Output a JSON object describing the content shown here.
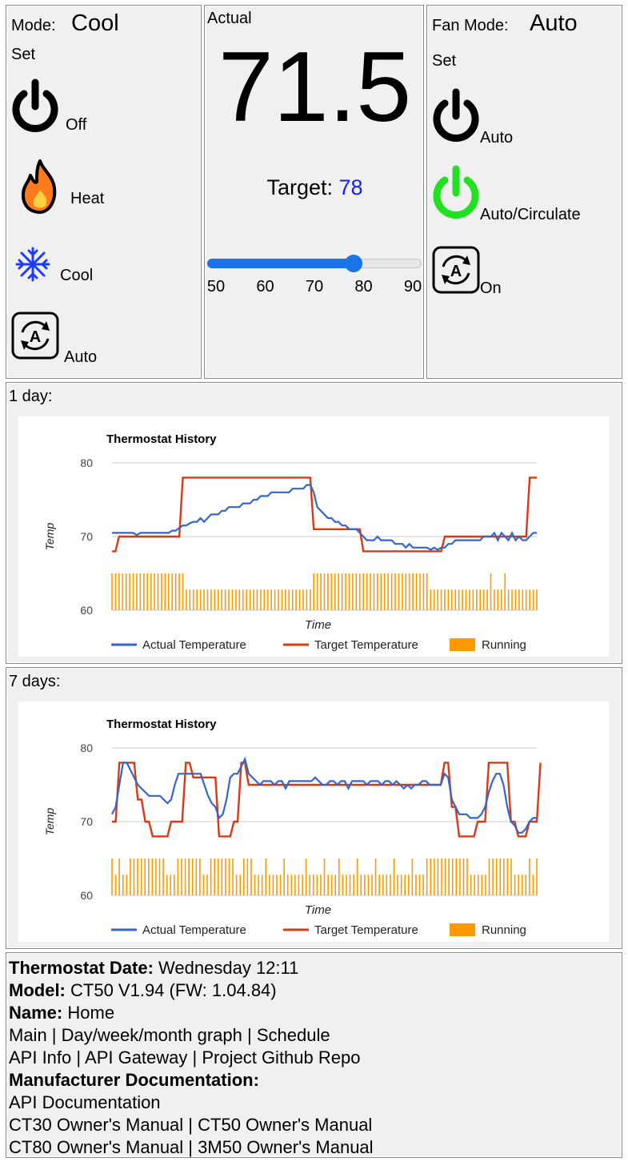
{
  "mode_panel": {
    "mode_label": "Mode:",
    "mode_value": "Cool",
    "set_label": "Set",
    "items": [
      {
        "label": "Off",
        "icon": "power-icon"
      },
      {
        "label": "Heat",
        "icon": "flame-icon"
      },
      {
        "label": "Cool",
        "icon": "snowflake-icon"
      },
      {
        "label": "Auto",
        "icon": "auto-cycle-icon"
      }
    ]
  },
  "temp_panel": {
    "actual_label": "Actual",
    "actual_value": "71.5",
    "target_label": "Target:",
    "target_value": "78",
    "slider": {
      "min": 50,
      "max": 90,
      "value": 78,
      "ticks": [
        "50",
        "60",
        "70",
        "80",
        "90"
      ]
    }
  },
  "fan_panel": {
    "mode_label": "Fan Mode:",
    "mode_value": "Auto",
    "set_label": "Set",
    "items": [
      {
        "label": "Auto",
        "icon": "power-icon"
      },
      {
        "label": "Auto/Circulate",
        "icon": "power-icon-green"
      },
      {
        "label": "On",
        "icon": "auto-cycle-icon"
      }
    ]
  },
  "charts_section": [
    {
      "label": "1 day:"
    },
    {
      "label": "7 days:"
    }
  ],
  "chart_data": [
    {
      "type": "line",
      "title": "Thermostat History",
      "xlabel": "Time",
      "ylabel": "Temp",
      "ylim": [
        60,
        80
      ],
      "yticks": [
        "80",
        "70",
        "60"
      ],
      "legend": [
        "Actual Temperature",
        "Target Temperature",
        "Running"
      ],
      "legend_position": "bottom",
      "series": [
        {
          "name": "Actual Temperature",
          "color": "#3366cc",
          "values": [
            70.5,
            70.5,
            70.5,
            70.5,
            70.5,
            70.5,
            70.5,
            70.2,
            70.5,
            70.5,
            70.5,
            70.5,
            70.5,
            70.5,
            70.5,
            70.5,
            70.5,
            70.8,
            70.8,
            71.2,
            71.5,
            71.5,
            71.8,
            72.0,
            72.0,
            72.5,
            72.0,
            72.5,
            73.0,
            73.0,
            73.0,
            73.5,
            73.5,
            74.0,
            74.0,
            74.0,
            74.0,
            74.5,
            74.5,
            74.5,
            75.0,
            75.0,
            75.5,
            75.5,
            75.5,
            76.0,
            76.0,
            76.0,
            76.0,
            76.0,
            76.0,
            76.5,
            76.5,
            76.5,
            76.5,
            77.0,
            77.0,
            76.0,
            74.0,
            73.5,
            73.0,
            72.5,
            72.5,
            72.0,
            72.0,
            71.5,
            71.5,
            71.0,
            71.0,
            71.0,
            70.5,
            70.0,
            69.5,
            69.5,
            69.5,
            70.0,
            69.5,
            69.5,
            69.5,
            69.5,
            69.0,
            69.0,
            69.0,
            68.5,
            69.0,
            68.5,
            68.5,
            68.5,
            68.5,
            68.5,
            68.2,
            68.5,
            68.2,
            68.5,
            68.5,
            69.0,
            69.0,
            69.5,
            69.5,
            69.5,
            69.5,
            69.5,
            69.5,
            69.5,
            69.5,
            70.0,
            70.0,
            70.0,
            70.5,
            69.5,
            70.5,
            70.0,
            69.5,
            70.5,
            69.5,
            70.0,
            69.5,
            69.5,
            70.0,
            70.5,
            70.5
          ]
        },
        {
          "name": "Target Temperature",
          "color": "#dc3912",
          "values": [
            68,
            68,
            70,
            70,
            70,
            70,
            70,
            70,
            70,
            70,
            70,
            70,
            70,
            70,
            70,
            70,
            70,
            70,
            70,
            70,
            78,
            78,
            78,
            78,
            78,
            78,
            78,
            78,
            78,
            78,
            78,
            78,
            78,
            78,
            78,
            78,
            78,
            78,
            78,
            78,
            78,
            78,
            78,
            78,
            78,
            78,
            78,
            78,
            78,
            78,
            78,
            78,
            78,
            78,
            78,
            78,
            78,
            71,
            71,
            71,
            71,
            71,
            71,
            71,
            71,
            71,
            71,
            71,
            71,
            71,
            71,
            68,
            68,
            68,
            68,
            68,
            68,
            68,
            68,
            68,
            68,
            68,
            68,
            68,
            68,
            68,
            68,
            68,
            68,
            68,
            68,
            68,
            68,
            68,
            70,
            70,
            70,
            70,
            70,
            70,
            70,
            70,
            70,
            70,
            70,
            70,
            70,
            70,
            70,
            70,
            70,
            70,
            70,
            70,
            70,
            70,
            70,
            70,
            78,
            78,
            78
          ]
        },
        {
          "name": "Running",
          "color": "#ff9900",
          "values": [
            1,
            1,
            1,
            1,
            1,
            1,
            1,
            1,
            1,
            1,
            1,
            1,
            1,
            1,
            1,
            1,
            1,
            1,
            1,
            1,
            1,
            0,
            0,
            0,
            0,
            0,
            0,
            0,
            0,
            0,
            0,
            0,
            0,
            0,
            0,
            0,
            0,
            0,
            0,
            0,
            0,
            0,
            0,
            0,
            0,
            0,
            0,
            0,
            0,
            0,
            0,
            0,
            0,
            0,
            0,
            0,
            0,
            1,
            1,
            1,
            1,
            1,
            1,
            1,
            1,
            1,
            1,
            1,
            1,
            1,
            1,
            1,
            1,
            1,
            1,
            1,
            1,
            1,
            1,
            1,
            1,
            1,
            1,
            1,
            1,
            1,
            1,
            1,
            1,
            1,
            0,
            0,
            0,
            0,
            0,
            0,
            0,
            0,
            0,
            0,
            0,
            0,
            0,
            0,
            0,
            0,
            0,
            1,
            0,
            0,
            0,
            1,
            0,
            0,
            0,
            0,
            0,
            0,
            0,
            0,
            0
          ]
        }
      ]
    },
    {
      "type": "line",
      "title": "Thermostat History",
      "xlabel": "Time",
      "ylabel": "Temp",
      "ylim": [
        60,
        80
      ],
      "yticks": [
        "80",
        "70",
        "60"
      ],
      "legend": [
        "Actual Temperature",
        "Target Temperature",
        "Running"
      ],
      "legend_position": "bottom",
      "series": [
        {
          "name": "Actual Temperature",
          "color": "#3366cc",
          "values": [
            71,
            72,
            75,
            78,
            78,
            77,
            76,
            75,
            74.5,
            74,
            73.5,
            73.5,
            73.5,
            73.5,
            73,
            72.5,
            73,
            75,
            76.5,
            76.5,
            76.5,
            76.5,
            76.5,
            76.5,
            76.5,
            75,
            73.5,
            72.5,
            72,
            70.5,
            71,
            73,
            76,
            76.5,
            76.5,
            77.5,
            78.5,
            76.5,
            76,
            75.5,
            75,
            75.5,
            75.5,
            75.5,
            75,
            75.5,
            75.5,
            74.5,
            75.5,
            75.5,
            75.5,
            75.5,
            75.5,
            75.5,
            75.5,
            76,
            75.5,
            75,
            75,
            75.5,
            75.5,
            75,
            75.5,
            75.5,
            74.5,
            75.5,
            75.5,
            75.5,
            75.5,
            75,
            75.5,
            75.5,
            75.5,
            75,
            75.5,
            75.5,
            75,
            75.5,
            75,
            74.5,
            75,
            74.5,
            75,
            75,
            75.5,
            75.5,
            75,
            75,
            75,
            75,
            76.5,
            76,
            73,
            72,
            71,
            71,
            71,
            70.5,
            70.5,
            70.5,
            71,
            72,
            74,
            75.5,
            76.5,
            76.5,
            75,
            72,
            70,
            69.5,
            68.5,
            68.5,
            69,
            70,
            70.5,
            70.5
          ]
        },
        {
          "name": "Target Temperature",
          "color": "#dc3912",
          "values": [
            70,
            70,
            78,
            78,
            78,
            78,
            78,
            73,
            73,
            70,
            70,
            68,
            68,
            68,
            68,
            68,
            70,
            70,
            70,
            70,
            78,
            78,
            76,
            76,
            76,
            76,
            76,
            76,
            76,
            68,
            68,
            68,
            68,
            70,
            70,
            78,
            78,
            75,
            75,
            75,
            75,
            75,
            75,
            75,
            75,
            75,
            75,
            75,
            75,
            75,
            75,
            75,
            75,
            75,
            75,
            75,
            75,
            75,
            75,
            75,
            75,
            75,
            75,
            75,
            75,
            75,
            75,
            75,
            75,
            75,
            75,
            75,
            75,
            75,
            75,
            75,
            75,
            75,
            75,
            75,
            75,
            75,
            75,
            75,
            75,
            75,
            75,
            75,
            75,
            75,
            78,
            78,
            72,
            72,
            68,
            68,
            68,
            68,
            68,
            70,
            70,
            70,
            78,
            78,
            78,
            78,
            78,
            78,
            70,
            70,
            68,
            68,
            68,
            70,
            70,
            70,
            78
          ]
        },
        {
          "name": "Running",
          "color": "#ff9900",
          "values": [
            1,
            0,
            1,
            0,
            0,
            1,
            1,
            1,
            1,
            1,
            1,
            1,
            1,
            1,
            1,
            0,
            0,
            0,
            1,
            1,
            1,
            1,
            1,
            1,
            1,
            0,
            0,
            1,
            1,
            1,
            1,
            1,
            1,
            1,
            0,
            0,
            1,
            1,
            1,
            0,
            0,
            0,
            1,
            0,
            0,
            0,
            0,
            1,
            0,
            0,
            0,
            0,
            0,
            1,
            0,
            0,
            0,
            0,
            1,
            0,
            0,
            0,
            1,
            0,
            0,
            0,
            0,
            1,
            0,
            0,
            0,
            0,
            1,
            0,
            0,
            0,
            0,
            1,
            0,
            0,
            0,
            0,
            1,
            0,
            0,
            0,
            1,
            1,
            1,
            1,
            1,
            1,
            1,
            1,
            1,
            1,
            1,
            1,
            0,
            0,
            0,
            0,
            0,
            1,
            1,
            1,
            1,
            1,
            1,
            1,
            0,
            0,
            0,
            0,
            1,
            0,
            1
          ]
        }
      ]
    }
  ],
  "info": {
    "date_label": "Thermostat Date:",
    "date_value": "Wednesday 12:11",
    "model_label": "Model:",
    "model_value": "CT50 V1.94 (FW: 1.04.84)",
    "name_label": "Name:",
    "name_value": "Home",
    "nav_links": [
      "Main",
      "Day/week/month graph",
      "Schedule"
    ],
    "api_links": [
      "API Info",
      "API Gateway",
      "Project Github Repo"
    ],
    "docs_label": "Manufacturer Documentation:",
    "docs_links_1": [
      "API Documentation"
    ],
    "docs_links_2": [
      "CT30 Owner's Manual",
      "CT50 Owner's Manual"
    ],
    "docs_links_3": [
      "CT80 Owner's Manual",
      "3M50 Owner's Manual"
    ],
    "separator": " | "
  }
}
